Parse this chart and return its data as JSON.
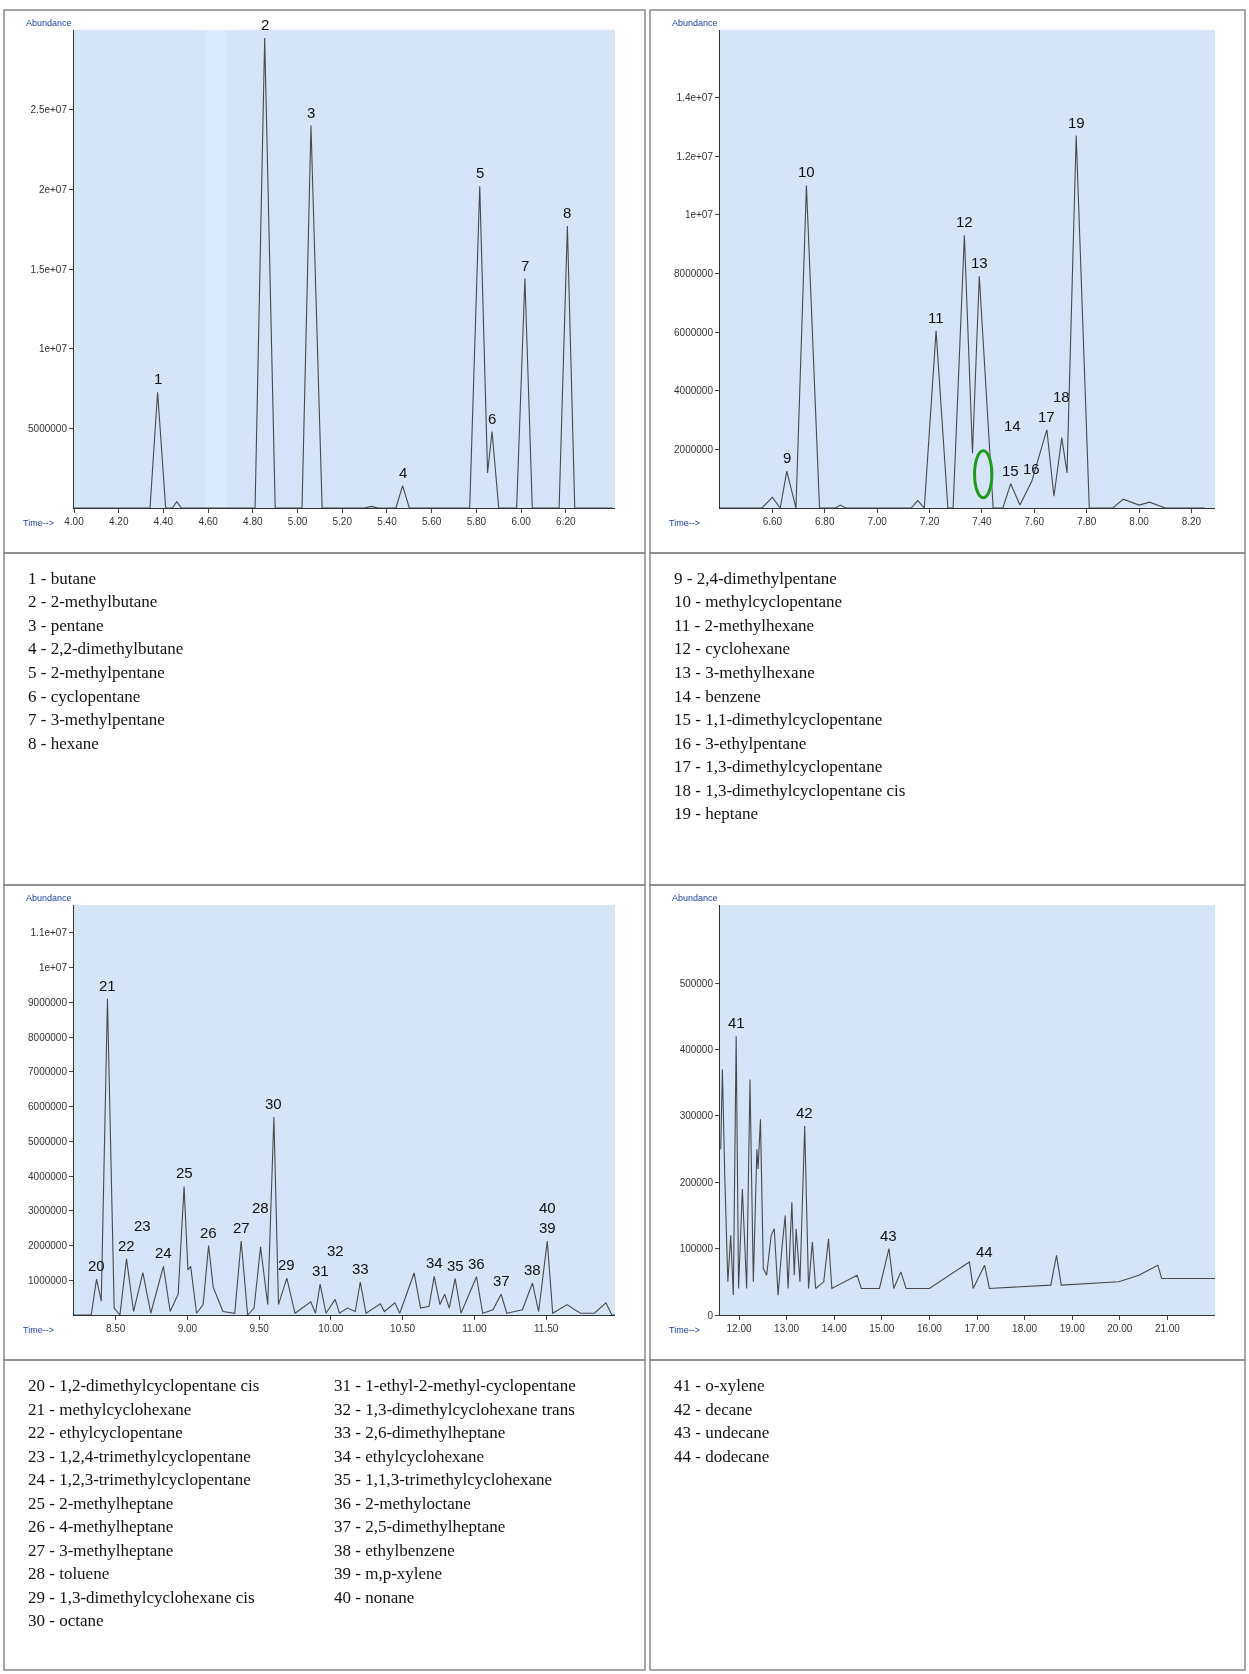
{
  "chart_data": [
    {
      "type": "line",
      "xlabel": "Time-->",
      "ylabel": "Abundance",
      "color": "#4a4a4a",
      "grid": false,
      "x": [
        4.0,
        4.34,
        4.374,
        4.41,
        4.44,
        4.46,
        4.48,
        4.81,
        4.853,
        4.9,
        5.02,
        5.06,
        5.11,
        5.3,
        5.33,
        5.36,
        5.44,
        5.47,
        5.5,
        5.77,
        5.815,
        5.85,
        5.87,
        5.9,
        5.98,
        6.017,
        6.05,
        6.17,
        6.207,
        6.24,
        6.41
      ],
      "values": [
        0,
        0,
        7260000,
        0,
        0,
        400000,
        0,
        0,
        29500000,
        0,
        0,
        24000000,
        0,
        0,
        100000,
        0,
        0,
        1400000,
        0,
        0,
        20200000,
        2200000,
        4800000,
        0,
        0,
        14400000,
        0,
        0,
        17700000,
        0,
        0
      ],
      "xlim": [
        4.0,
        6.42
      ],
      "ylim": [
        0,
        30000000
      ],
      "xticks": [
        {
          "value": 4.0,
          "label": "4.00"
        },
        {
          "value": 4.2,
          "label": "4.20"
        },
        {
          "value": 4.4,
          "label": "4.40"
        },
        {
          "value": 4.6,
          "label": "4.60"
        },
        {
          "value": 4.8,
          "label": "4.80"
        },
        {
          "value": 5.0,
          "label": "5.00"
        },
        {
          "value": 5.2,
          "label": "5.20"
        },
        {
          "value": 5.4,
          "label": "5.40"
        },
        {
          "value": 5.6,
          "label": "5.60"
        },
        {
          "value": 5.8,
          "label": "5.80"
        },
        {
          "value": 6.0,
          "label": "6.00"
        },
        {
          "value": 6.2,
          "label": "6.20"
        }
      ],
      "yticks": [
        5000000,
        {
          "value": 10000000,
          "label": "1e+07"
        },
        {
          "value": 15000000,
          "label": "1.5e+07"
        },
        {
          "value": 20000000,
          "label": "2e+07"
        },
        {
          "value": 25000000,
          "label": "2.5e+07"
        }
      ],
      "bands": [
        {
          "axis": "x",
          "from": 4.59,
          "to": 4.68,
          "color": "#dcebfb"
        }
      ],
      "annotations": [
        {
          "text": "1",
          "x": 4.374,
          "y": 7260000
        },
        {
          "text": "2",
          "x": 4.853,
          "y": 29500000
        },
        {
          "text": "3",
          "x": 5.06,
          "y": 24000000
        },
        {
          "text": "4",
          "x": 5.47,
          "y": 1400000
        },
        {
          "text": "5",
          "x": 5.815,
          "y": 20200000
        },
        {
          "text": "6",
          "x": 5.87,
          "y": 4800000
        },
        {
          "text": "7",
          "x": 6.017,
          "y": 14400000
        },
        {
          "text": "8",
          "x": 6.207,
          "y": 17700000
        }
      ]
    },
    {
      "type": "line",
      "xlabel": "Time-->",
      "ylabel": "Abundance",
      "color": "#4a4a4a",
      "grid": false,
      "x": [
        6.4,
        6.56,
        6.6,
        6.63,
        6.655,
        6.69,
        6.73,
        6.78,
        6.84,
        6.86,
        6.88,
        7.13,
        7.155,
        7.18,
        7.225,
        7.27,
        7.29,
        7.333,
        7.364,
        7.39,
        7.443,
        7.48,
        7.51,
        7.545,
        7.59,
        7.648,
        7.675,
        7.705,
        7.725,
        7.76,
        7.81,
        7.9,
        7.94,
        8.0,
        8.04,
        8.1,
        8.25
      ],
      "values": [
        0,
        0,
        360000,
        0,
        1260000,
        0,
        11000000,
        0,
        0,
        100000,
        0,
        0,
        250000,
        0,
        6040000,
        0,
        0,
        9300000,
        1870000,
        7900000,
        0,
        0,
        830000,
        100000,
        900000,
        2670000,
        400000,
        2400000,
        1200000,
        12700000,
        0,
        0,
        300000,
        100000,
        200000,
        0,
        0
      ],
      "xlim": [
        6.4,
        8.29
      ],
      "ylim": [
        0,
        16300000
      ],
      "xticks": [
        {
          "value": 6.6,
          "label": "6.60"
        },
        {
          "value": 6.8,
          "label": "6.80"
        },
        {
          "value": 7.0,
          "label": "7.00"
        },
        {
          "value": 7.2,
          "label": "7.20"
        },
        {
          "value": 7.4,
          "label": "7.40"
        },
        {
          "value": 7.6,
          "label": "7.60"
        },
        {
          "value": 7.8,
          "label": "7.80"
        },
        {
          "value": 8.0,
          "label": "8.00"
        },
        {
          "value": 8.2,
          "label": "8.20"
        }
      ],
      "yticks": [
        2000000,
        4000000,
        6000000,
        8000000,
        {
          "value": 10000000,
          "label": "1e+07"
        },
        {
          "value": 12000000,
          "label": "1.2e+07"
        },
        {
          "value": 14000000,
          "label": "1.4e+07"
        }
      ],
      "annotations": [
        {
          "text": "9",
          "x": 6.655,
          "y": 1260000
        },
        {
          "text": "10",
          "x": 6.73,
          "y": 11000000
        },
        {
          "text": "11",
          "x": 7.225,
          "y": 6040000
        },
        {
          "text": "12",
          "x": 7.333,
          "y": 9300000
        },
        {
          "text": "13",
          "x": 7.39,
          "y": 7900000
        },
        "14",
        {
          "text": "15",
          "x": 7.51,
          "y": 830000
        },
        {
          "text": "16",
          "x": 7.59,
          "y": 900000
        },
        {
          "text": "17",
          "x": 7.648,
          "y": 2670000
        },
        {
          "text": "18",
          "x": 7.705,
          "y": 2400000
        },
        {
          "text": "19",
          "x": 7.76,
          "y": 12700000
        }
      ]
    },
    {
      "type": "other",
      "annotations": [
        "1 - butane",
        "2 - 2-methylbutane",
        "3 - pentane",
        "4 - 2,2-dimethylbutane",
        "5 - 2-methylpentane",
        "6 - cyclopentane",
        "7 - 3-methylpentane",
        "8 - hexane"
      ]
    },
    {
      "type": "other",
      "annotations": [
        "9 - 2,4-dimethylpentane",
        "10 - methylcyclopentane",
        "11 - 2-methylhexane",
        "12 - cyclohexane",
        "13 - 3-methylhexane",
        "14 - benzene",
        "15 - 1,1-dimethylcyclopentane",
        "16 - 3-ethylpentane",
        "17 - 1,3-dimethylcyclopentane",
        "18 - 1,3-dimethylcyclopentane cis",
        "19 - heptane"
      ]
    },
    {
      "type": "line",
      "xlabel": "Time-->",
      "ylabel": "Abundance",
      "color": "#4a4a4a",
      "grid": false,
      "x": [
        8.21,
        8.33,
        8.367,
        8.4,
        8.443,
        8.49,
        8.53,
        8.576,
        8.625,
        8.69,
        8.745,
        8.833,
        8.88,
        8.936,
        8.977,
        9.004,
        9.023,
        9.064,
        9.11,
        9.148,
        9.18,
        9.248,
        9.33,
        9.375,
        9.42,
        9.465,
        9.51,
        9.56,
        9.603,
        9.635,
        9.693,
        9.75,
        9.86,
        9.893,
        9.925,
        9.966,
        10.03,
        10.06,
        10.115,
        10.17,
        10.205,
        10.245,
        10.345,
        10.373,
        10.446,
        10.48,
        10.58,
        10.625,
        10.684,
        10.72,
        10.76,
        10.793,
        10.825,
        10.866,
        10.907,
        11.015,
        11.058,
        11.13,
        11.186,
        11.226,
        11.335,
        11.405,
        11.448,
        11.508,
        11.546,
        11.646,
        11.7,
        11.74,
        11.836,
        11.917,
        11.958,
        11.98
      ],
      "values": [
        0,
        0,
        1030000,
        400000,
        9100000,
        200000,
        0,
        1620000,
        100000,
        1220000,
        50000,
        1400000,
        100000,
        600000,
        3700000,
        1300000,
        1400000,
        50000,
        300000,
        2000000,
        800000,
        100000,
        50000,
        2130000,
        0,
        200000,
        1960000,
        300000,
        5700000,
        300000,
        1060000,
        50000,
        380000,
        50000,
        890000,
        50000,
        450000,
        50000,
        200000,
        100000,
        950000,
        50000,
        320000,
        100000,
        350000,
        50000,
        1210000,
        200000,
        250000,
        1110000,
        300000,
        600000,
        200000,
        1050000,
        50000,
        1100000,
        50000,
        150000,
        600000,
        50000,
        150000,
        920000,
        100000,
        2130000,
        50000,
        300000,
        150000,
        50000,
        50000,
        350000,
        0,
        0
      ],
      "xlim": [
        8.21,
        11.98
      ],
      "ylim": [
        0,
        11800000
      ],
      "xticks": [
        {
          "value": 8.5,
          "label": "8.50"
        },
        {
          "value": 9.0,
          "label": "9.00"
        },
        {
          "value": 9.5,
          "label": "9.50"
        },
        {
          "value": 10.0,
          "label": "10.00"
        },
        {
          "value": 10.5,
          "label": "10.50"
        },
        {
          "value": 11.0,
          "label": "11.00"
        },
        {
          "value": 11.5,
          "label": "11.50"
        }
      ],
      "yticks": [
        1000000,
        2000000,
        3000000,
        4000000,
        5000000,
        6000000,
        7000000,
        8000000,
        9000000,
        {
          "value": 10000000,
          "label": "1e+07"
        },
        {
          "value": 11000000,
          "label": "1.1e+07"
        }
      ],
      "annotations": [
        {
          "text": "20",
          "x": 8.367,
          "y": 1030000
        },
        {
          "text": "21",
          "x": 8.443,
          "y": 9100000
        },
        {
          "text": "22",
          "x": 8.576,
          "y": 1620000
        },
        {
          "text": "23",
          "x": 8.69,
          "y": 1220000
        },
        {
          "text": "24",
          "x": 8.833,
          "y": 1400000
        },
        {
          "text": "25",
          "x": 8.977,
          "y": 3700000
        },
        {
          "text": "26",
          "x": 9.148,
          "y": 2000000
        },
        {
          "text": "27",
          "x": 9.375,
          "y": 2130000
        },
        {
          "text": "28",
          "x": 9.51,
          "y": 1960000
        },
        {
          "text": "29",
          "x": 9.693,
          "y": 1060000
        },
        {
          "text": "30",
          "x": 9.603,
          "y": 5700000
        },
        {
          "text": "31",
          "x": 9.925,
          "y": 890000
        },
        {
          "text": "32",
          "x": 10.03,
          "y": 450000
        },
        {
          "text": "33",
          "x": 10.205,
          "y": 950000
        },
        {
          "text": "34",
          "x": 10.72,
          "y": 1110000
        },
        {
          "text": "35",
          "x": 10.866,
          "y": 1050000
        },
        {
          "text": "36",
          "x": 11.015,
          "y": 1100000
        },
        {
          "text": "37",
          "x": 11.186,
          "y": 600000
        },
        {
          "text": "38",
          "x": 11.405,
          "y": 920000
        },
        {
          "text": "39",
          "x": 11.508,
          "y": 2130000
        },
        {
          "text": "40",
          "x": 11.508,
          "y": 2130000
        }
      ]
    },
    {
      "type": "line",
      "xlabel": "Time-->",
      "ylabel": "Abundance",
      "color": "#4a4a4a",
      "grid": false,
      "x": [
        11.615,
        11.65,
        11.7,
        11.765,
        11.825,
        11.88,
        11.94,
        11.99,
        12.07,
        12.16,
        12.23,
        12.3,
        12.375,
        12.4,
        12.45,
        12.51,
        12.58,
        12.675,
        12.74,
        12.82,
        12.9,
        12.97,
        13.03,
        13.11,
        13.16,
        13.2,
        13.28,
        13.38,
        13.46,
        13.54,
        13.61,
        13.78,
        13.88,
        13.95,
        14.48,
        14.57,
        14.95,
        15.15,
        15.25,
        15.4,
        15.51,
        16.0,
        16.84,
        16.92,
        17.16,
        17.26,
        18.55,
        18.67,
        18.77,
        19.98,
        20.4,
        20.8,
        20.88,
        22.0
      ],
      "values": [
        250000,
        370000,
        210000,
        50000,
        120000,
        30000,
        420000,
        40000,
        190000,
        40000,
        355000,
        50000,
        250000,
        220000,
        295000,
        70000,
        60000,
        120000,
        130000,
        30000,
        100000,
        150000,
        40000,
        170000,
        60000,
        130000,
        50000,
        285000,
        40000,
        110000,
        40000,
        50000,
        115000,
        40000,
        60000,
        40000,
        40000,
        100000,
        40000,
        65000,
        40000,
        40000,
        80000,
        40000,
        75000,
        40000,
        45000,
        90000,
        45000,
        50000,
        60000,
        75000,
        55000,
        55000
      ],
      "xlim": [
        11.6,
        22.0
      ],
      "ylim": [
        0,
        618000
      ],
      "xticks": [
        {
          "value": 12,
          "label": "12.00"
        },
        {
          "value": 13,
          "label": "13.00"
        },
        {
          "value": 14,
          "label": "14.00"
        },
        {
          "value": 15,
          "label": "15.00"
        },
        {
          "value": 16,
          "label": "16.00"
        },
        {
          "value": 17,
          "label": "17.00"
        },
        {
          "value": 18,
          "label": "18.00"
        },
        {
          "value": 19,
          "label": "19.00"
        },
        {
          "value": 20,
          "label": "20.00"
        },
        {
          "value": 21,
          "label": "21.00"
        }
      ],
      "yticks": [
        0,
        100000,
        200000,
        300000,
        400000,
        500000
      ],
      "annotations": [
        {
          "text": "41",
          "x": 11.94,
          "y": 420000
        },
        {
          "text": "42",
          "x": 13.38,
          "y": 285000
        },
        {
          "text": "43",
          "x": 15.15,
          "y": 100000
        },
        {
          "text": "44",
          "x": 17.16,
          "y": 75000
        }
      ]
    },
    {
      "type": "other",
      "annotations": [
        "20 - 1,2-dimethylcyclopentane cis",
        "21 - methylcyclohexane",
        "22 - ethylcyclopentane",
        "23 - 1,2,4-trimethylcyclopentane",
        "24 - 1,2,3-trimethylcyclopentane",
        "25 - 2-methylheptane",
        "26 - 4-methylheptane",
        "27 - 3-methylheptane",
        "28 - toluene",
        "29 - 1,3-dimethylcyclohexane cis",
        "30 - octane",
        "31 - 1-ethyl-2-methyl-cyclopentane",
        "32 - 1,3-dimethylcyclohexane trans",
        "33 - 2,6-dimethylheptane",
        "34 - ethylcyclohexane",
        "35 - 1,1,3-trimethylcyclohexane",
        "36 - 2-methyloctane",
        "37 - 2,5-dimethylheptane",
        "38 - ethylbenzene",
        "39 - m,p-xylene",
        "40 - nonane"
      ]
    },
    {
      "type": "other",
      "annotations": [
        "41 - o-xylene",
        "42 - decane",
        "43 - undecane",
        "44 - dodecane"
      ]
    }
  ]
}
